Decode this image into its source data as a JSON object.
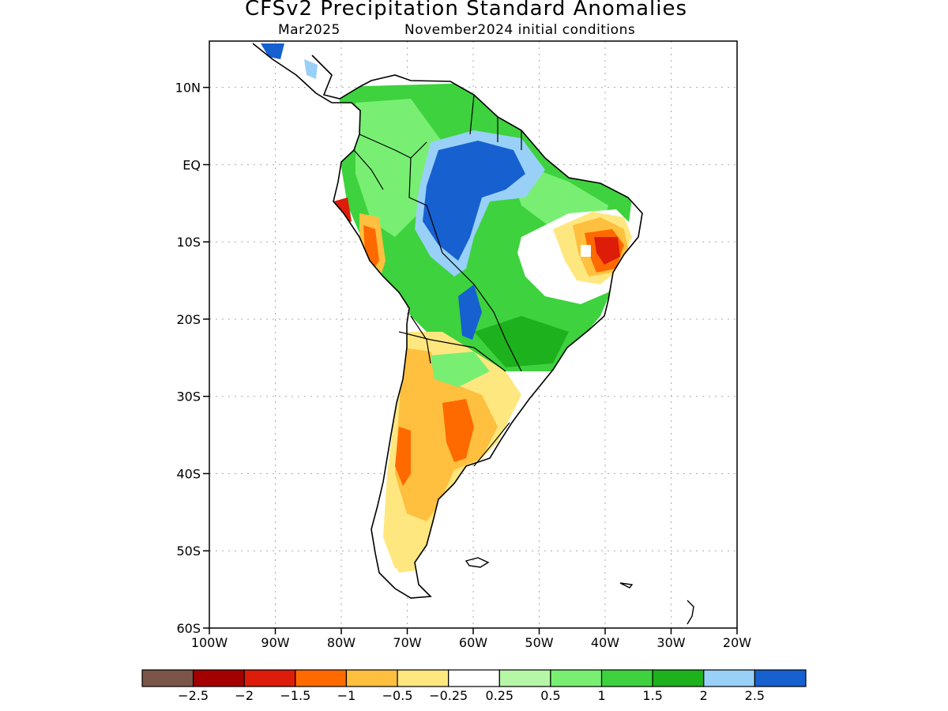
{
  "title": "CFSv2 Precipitation Standard Anomalies",
  "subtitle_left": "Mar2025",
  "subtitle_right": "November2024 initial conditions",
  "lat_labels": [
    "10N",
    "EQ",
    "10S",
    "20S",
    "30S",
    "40S",
    "50S",
    "60S"
  ],
  "lat_values": [
    10,
    0,
    -10,
    -20,
    -30,
    -40,
    -50,
    -60
  ],
  "lon_labels": [
    "100W",
    "90W",
    "80W",
    "70W",
    "60W",
    "50W",
    "40W",
    "30W",
    "20W"
  ],
  "lon_values": [
    -100,
    -90,
    -80,
    -70,
    -60,
    -50,
    -40,
    -30,
    -20
  ],
  "map_extent": {
    "lon": [
      -100,
      -20
    ],
    "lat": [
      -60,
      16
    ]
  },
  "colorbar": {
    "colors": [
      "#7a5548",
      "#a50000",
      "#dd1c0a",
      "#ff6a00",
      "#ffbf3f",
      "#ffe77f",
      "#ffffff",
      "#b5f7a7",
      "#78ef72",
      "#3ed23e",
      "#1db11d",
      "#98d0f8",
      "#1660d0"
    ],
    "labels": [
      "−2.5",
      "−2",
      "−1.5",
      "−1",
      "−0.5",
      "−0.25",
      "0.25",
      "0.5",
      "1",
      "1.5",
      "2",
      "2.5"
    ]
  }
}
